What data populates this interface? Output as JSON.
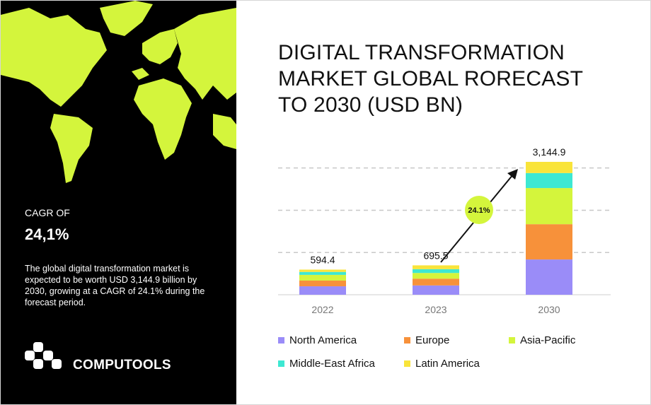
{
  "sidebar": {
    "cagr_label": "CAGR OF",
    "cagr_value": "24,1%",
    "description": "The global digital transformation market is expected to be worth USD 3,144.9 billion by 2030, growing at a CAGR of 24.1% during the forecast period.",
    "brand": "COMPUTOOLS"
  },
  "chart_data": {
    "type": "bar",
    "stacked": true,
    "title_lines": [
      "DIGITAL TRANSFORMATION",
      "MARKET GLOBAL RORECAST",
      "TO 2030 (USD BN)"
    ],
    "categories": [
      "2022",
      "2023",
      "2030"
    ],
    "series": [
      {
        "name": "North America",
        "color": "#9a8cf8",
        "values": [
          200,
          220,
          835
        ]
      },
      {
        "name": "Europe",
        "color": "#f7913a",
        "values": [
          135,
          160,
          835
        ]
      },
      {
        "name": "Asia-Pacific",
        "color": "#d4f53c",
        "values": [
          135,
          135,
          855
        ]
      },
      {
        "name": "Middle-East Africa",
        "color": "#3de8d2",
        "values": [
          70,
          90,
          355
        ]
      },
      {
        "name": "Latin America",
        "color": "#f9e43a",
        "values": [
          54.4,
          90.5,
          264.9
        ]
      }
    ],
    "totals": {
      "values": [
        594.4,
        695.5,
        3144.9
      ],
      "value_labels": [
        "594.4",
        "695.5",
        "3,144.9"
      ]
    },
    "annotation": "24.1%",
    "ylim": [
      0,
      3200
    ],
    "gridlines": [
      1000,
      2000,
      3000
    ],
    "grid": true
  }
}
